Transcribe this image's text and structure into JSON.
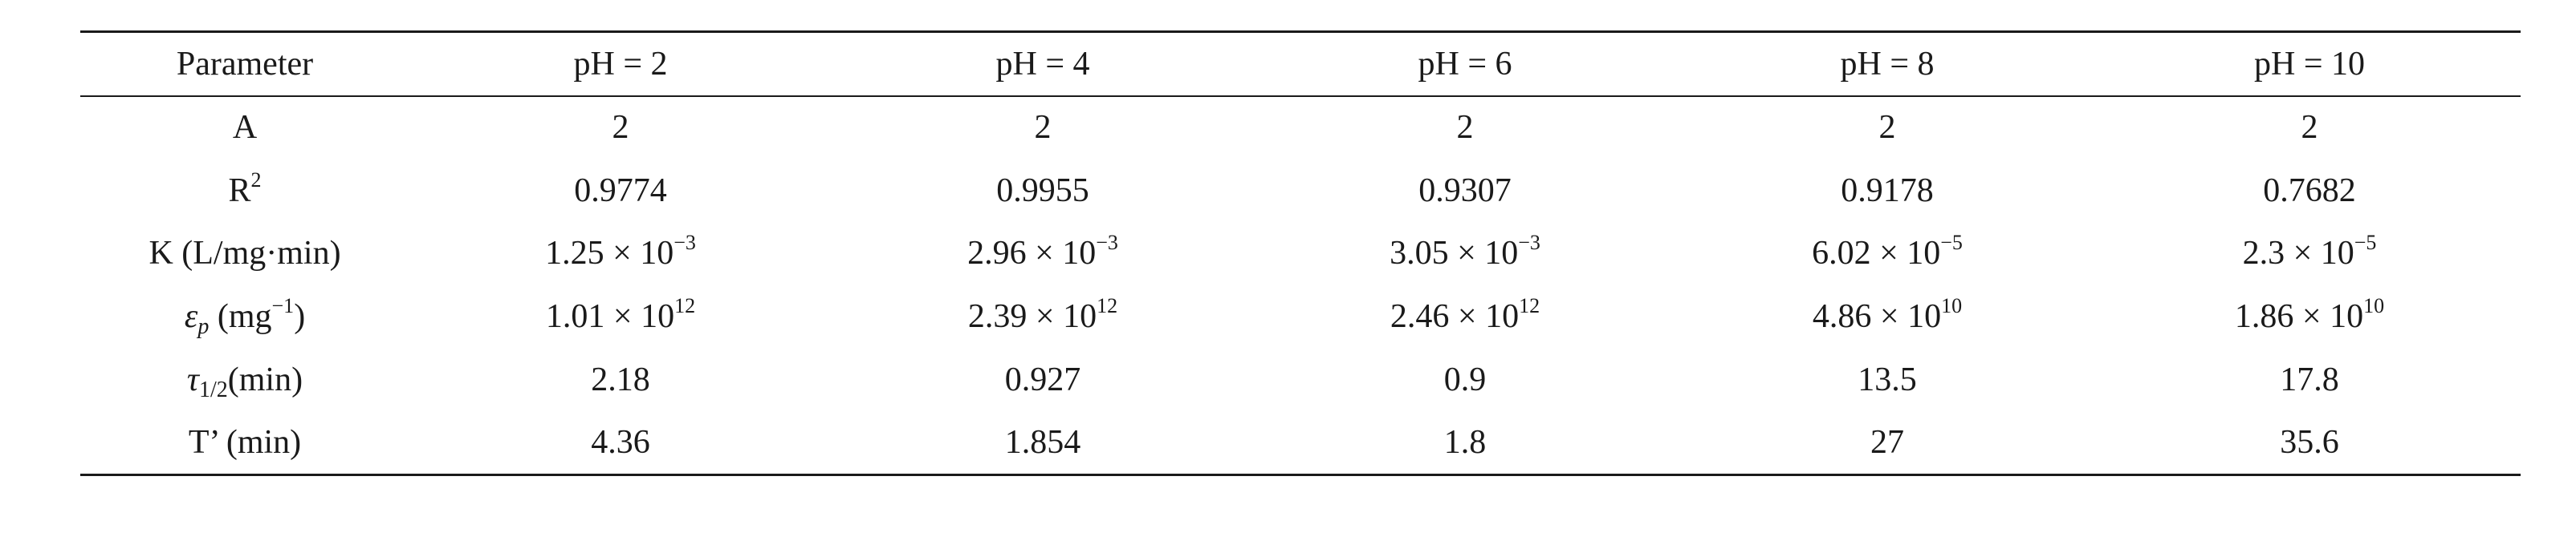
{
  "table": {
    "headers": [
      "Parameter",
      "pH = 2",
      "pH = 4",
      "pH = 6",
      "pH = 8",
      "pH = 10"
    ],
    "rows": [
      {
        "label": "A",
        "values": [
          "2",
          "2",
          "2",
          "2",
          "2"
        ]
      },
      {
        "label_base": "R",
        "label_sup": "2",
        "values": [
          "0.9774",
          "0.9955",
          "0.9307",
          "0.9178",
          "0.7682"
        ]
      },
      {
        "label": "K (L/mg·min)",
        "values": [
          {
            "mantissa": "1.25 × 10",
            "exp": "−3"
          },
          {
            "mantissa": "2.96 × 10",
            "exp": "−3"
          },
          {
            "mantissa": "3.05 × 10",
            "exp": "−3"
          },
          {
            "mantissa": "6.02 × 10",
            "exp": "−5"
          },
          {
            "mantissa": "2.3 × 10",
            "exp": "−5"
          }
        ]
      },
      {
        "label_symbol": "ε",
        "label_sub": "p",
        "label_unit_pre": " (mg",
        "label_unit_sup": "−1",
        "label_unit_post": ")",
        "values": [
          {
            "mantissa": "1.01 × 10",
            "exp": "12"
          },
          {
            "mantissa": "2.39 × 10",
            "exp": "12"
          },
          {
            "mantissa": "2.46 × 10",
            "exp": "12"
          },
          {
            "mantissa": "4.86 × 10",
            "exp": "10"
          },
          {
            "mantissa": "1.86 × 10",
            "exp": "10"
          }
        ]
      },
      {
        "label_symbol": "τ",
        "label_sub": "1/2",
        "label_unit": "(min)",
        "values": [
          "2.18",
          "0.927",
          "0.9",
          "13.5",
          "17.8"
        ]
      },
      {
        "label": "T’ (min)",
        "values": [
          "4.36",
          "1.854",
          "1.8",
          "27",
          "35.6"
        ]
      }
    ]
  }
}
